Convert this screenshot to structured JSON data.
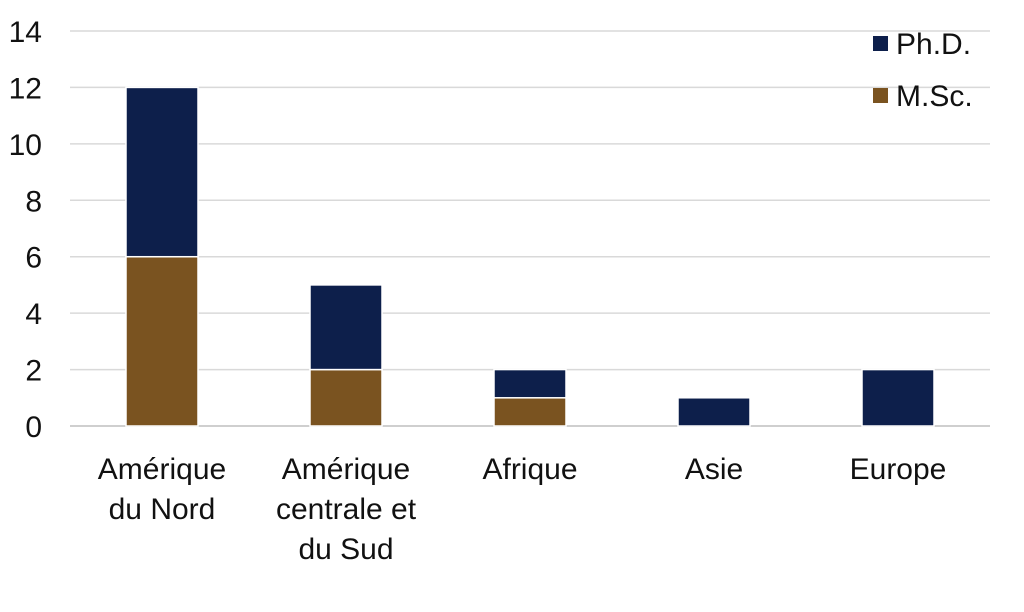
{
  "chart_data": {
    "type": "bar",
    "stacked": true,
    "categories": [
      [
        "Amérique",
        "du Nord"
      ],
      [
        "Amérique",
        "centrale et",
        "du Sud"
      ],
      [
        "Afrique"
      ],
      [
        "Asie"
      ],
      [
        "Europe"
      ]
    ],
    "series": [
      {
        "name": "M.Sc.",
        "color": "#7a5320",
        "values": [
          6,
          2,
          1,
          0,
          0
        ]
      },
      {
        "name": "Ph.D.",
        "color": "#0d1f4b",
        "values": [
          6,
          3,
          1,
          1,
          2
        ]
      }
    ],
    "legend_order": [
      1,
      0
    ],
    "legend_position": "top-right",
    "ylim": [
      0,
      14
    ],
    "yticks": [
      "0",
      "2",
      "4",
      "6",
      "8",
      "10",
      "12",
      "14"
    ],
    "grid": true,
    "title": "",
    "xlabel": "",
    "ylabel": ""
  }
}
